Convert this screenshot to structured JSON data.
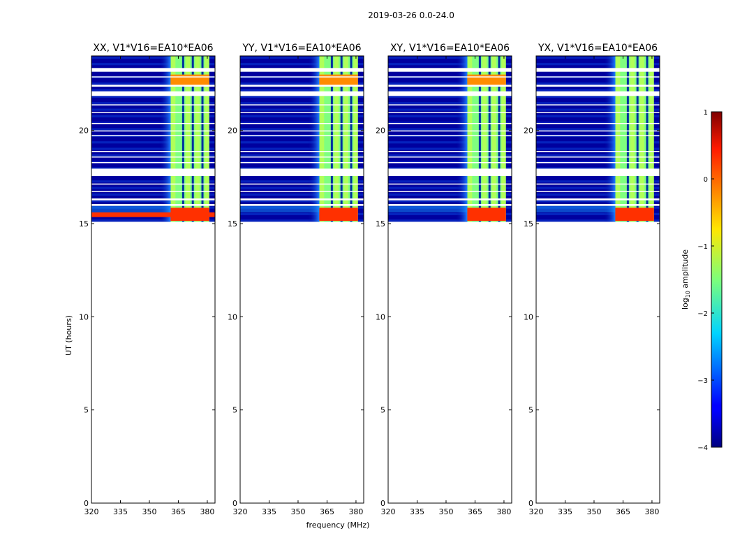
{
  "figure_title": "2019-03-26 0.0-24.0",
  "chart_data": {
    "type": "heatmap",
    "title": "2019-03-26 0.0-24.0",
    "xlabel": "frequency (MHz)",
    "ylabel": "UT (hours)",
    "xlim": [
      320,
      384
    ],
    "ylim": [
      0,
      24
    ],
    "x_ticks": [
      320,
      335,
      350,
      365,
      380
    ],
    "y_ticks": [
      0,
      5,
      10,
      15,
      20
    ],
    "data_extent_hours": [
      15.1,
      24.0
    ],
    "rfi_band_mhz": [
      361,
      381
    ],
    "rfi_channel_gaps_mhz": [
      367.5,
      372.5,
      377.5
    ],
    "flagged_rows_hours": [
      [
        23.15,
        23.35
      ],
      [
        22.85,
        22.9
      ],
      [
        22.35,
        22.45
      ],
      [
        21.85,
        22.1
      ],
      [
        21.35,
        21.4
      ],
      [
        20.95,
        21.0
      ],
      [
        20.35,
        20.4
      ],
      [
        19.95,
        20.0
      ],
      [
        19.7,
        19.75
      ],
      [
        18.85,
        18.9
      ],
      [
        18.55,
        18.6
      ],
      [
        18.25,
        18.3
      ],
      [
        17.55,
        17.95
      ],
      [
        17.1,
        17.15
      ],
      [
        16.7,
        16.75
      ],
      [
        16.25,
        16.35
      ],
      [
        15.95,
        16.05
      ]
    ],
    "panels": [
      {
        "title": "XX, V1*V16=EA10*EA06",
        "show_ylabel": true,
        "show_xlabel": false,
        "cross_band": true,
        "rfi_upper_hot": true
      },
      {
        "title": "YY, V1*V16=EA10*EA06",
        "show_ylabel": false,
        "show_xlabel": true,
        "cross_band": false,
        "rfi_upper_hot": true
      },
      {
        "title": "XY, V1*V16=EA10*EA06",
        "show_ylabel": false,
        "show_xlabel": false,
        "cross_band": false,
        "rfi_upper_hot": true
      },
      {
        "title": "YX, V1*V16=EA10*EA06",
        "show_ylabel": false,
        "show_xlabel": false,
        "cross_band": false,
        "rfi_upper_hot": false
      }
    ],
    "colorbar": {
      "label_prefix": "log",
      "label_subscript": "10",
      "label_suffix": " amplitude",
      "min": -4,
      "max": 1,
      "ticks": [
        1,
        0,
        -1,
        -2,
        -3,
        -4
      ],
      "tick_labels": [
        "1",
        "0",
        "−1",
        "−2",
        "−3",
        "−4"
      ],
      "colormap": "jet"
    },
    "colors": {
      "background": "#00009f",
      "band_mid": "#7fff7f",
      "band_hot": "#ff3000",
      "flag": "#ffffff"
    }
  }
}
